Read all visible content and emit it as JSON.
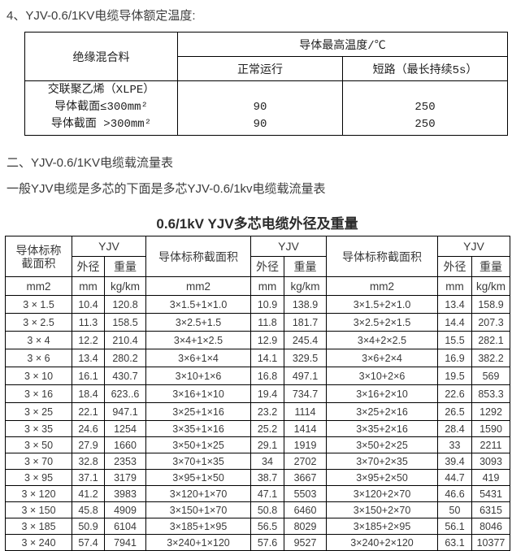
{
  "section1": {
    "heading": "4、YJV-0.6/1KV电缆导体额定温度:",
    "temp_table": {
      "insulation_header": "绝缘混合料",
      "max_temp_header": "导体最高温度/℃",
      "normal_header": "正常运行",
      "short_circuit_header": "短路（最长持续5s）",
      "material_lines": [
        "交联聚乙烯（XLPE）",
        "导体截面≤300mm²",
        "导体截面 >300mm²"
      ],
      "normal_values": [
        "90",
        "90"
      ],
      "short_circuit_values": [
        "250",
        "250"
      ]
    }
  },
  "section2": {
    "heading": "二、YJV-0.6/1KV电缆载流量表",
    "intro": "一般YJV电缆是多芯的下面是多芯YJV-0.6/1kv电缆载流量表",
    "table_title": "0.6/1kV YJV多芯电缆外径及重量"
  },
  "size_table": {
    "section_header": "导体标称截面积",
    "brand_header": "YJV",
    "od_header": "外径",
    "weight_header": "重量",
    "units": [
      "mm2",
      "mm",
      "kg/km",
      "mm2",
      "mm",
      "kg/km",
      "mm2",
      "mm",
      "kg/km"
    ],
    "rows": [
      [
        "3 × 1.5",
        "10.4",
        "120.8",
        "3×1.5+1×1.0",
        "10.9",
        "138.9",
        "3×1.5+2×1.0",
        "13.4",
        "158.9"
      ],
      [
        "3 × 2.5",
        "11.3",
        "158.5",
        "3×2.5+1.5",
        "11.8",
        "181.7",
        "3×2.5+2×1.5",
        "14.4",
        "207.3"
      ],
      [
        "3 × 4",
        "12.2",
        "210.4",
        "3×4+1×2.5",
        "12.9",
        "245.4",
        "3×4+2×2.5",
        "15.5",
        "282.1"
      ],
      [
        "3 × 6",
        "13.4",
        "280.2",
        "3×6+1×4",
        "14.1",
        "329.5",
        "3×6+2×4",
        "16.9",
        "382.2"
      ],
      [
        "3 × 10",
        "16.1",
        "430.7",
        "3×10+1×6",
        "16.8",
        "497.1",
        "3×10+2×6",
        "19.5",
        "569"
      ],
      [
        "3 × 16",
        "18.4",
        "623..6",
        "3×16+1×10",
        "19.4",
        "734.7",
        "3×16+2×10",
        "22.6",
        "853.3"
      ],
      [
        "3 × 25",
        "22.1",
        "947.1",
        "3×25+1×16",
        "23.2",
        "1114",
        "3×25+2×16",
        "26.5",
        "1292"
      ],
      [
        "3 × 35",
        "24.6",
        "1254",
        "3×35+1×16",
        "25.2",
        "1414",
        "3×35+2×16",
        "28.4",
        "1590"
      ],
      [
        "3 × 50",
        "27.9",
        "1660",
        "3×50+1×25",
        "29.1",
        "1919",
        "3×50+2×25",
        "33",
        "2211"
      ],
      [
        "3 × 70",
        "32.8",
        "2353",
        "3×70+1×35",
        "34",
        "2702",
        "3×70+2×35",
        "39.4",
        "3093"
      ],
      [
        "3 × 95",
        "37.1",
        "3179",
        "3×95+1×50",
        "38.7",
        "3667",
        "3×95+2×50",
        "44.7",
        "419"
      ],
      [
        "3 × 120",
        "41.2",
        "3983",
        "3×120+1×70",
        "47.1",
        "5503",
        "3×120+2×70",
        "46.6",
        "5431"
      ],
      [
        "3 × 150",
        "45.8",
        "4909",
        "3×150+1×70",
        "50.8",
        "6460",
        "3×150+2×70",
        "50",
        "6315"
      ],
      [
        "3 × 185",
        "50.9",
        "6104",
        "3×185+1×95",
        "56.5",
        "8029",
        "3×185+2×95",
        "56.1",
        "8046"
      ],
      [
        "3 × 240",
        "57.4",
        "7941",
        "3×240+1×120",
        "57.6",
        "9527",
        "3×240+2×120",
        "63.1",
        "10377"
      ]
    ]
  }
}
